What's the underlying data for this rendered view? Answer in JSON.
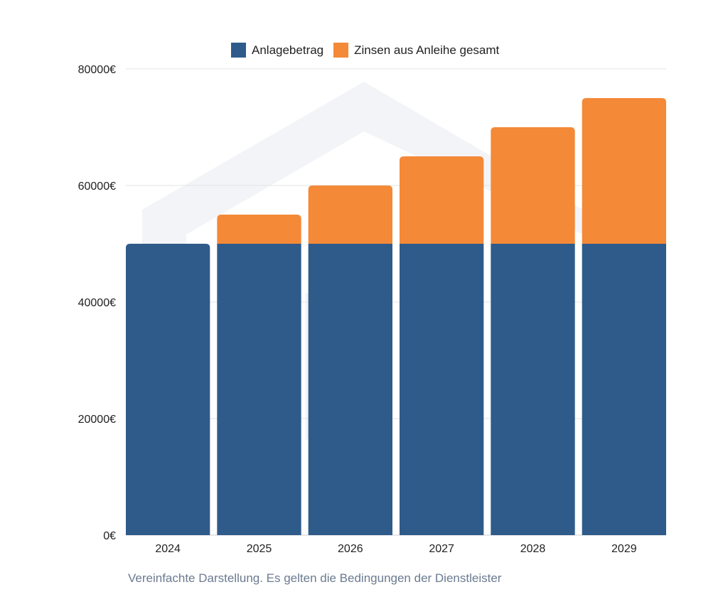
{
  "chart_data": {
    "type": "bar",
    "stacked": true,
    "title": "",
    "xlabel": "",
    "ylabel": "",
    "categories": [
      "2024",
      "2025",
      "2026",
      "2027",
      "2028",
      "2029"
    ],
    "series": [
      {
        "name": "Anlagebetrag",
        "color": "#2f5b8b",
        "values": [
          50000,
          50000,
          50000,
          50000,
          50000,
          50000
        ]
      },
      {
        "name": "Zinsen aus Anleihe gesamt",
        "color": "#f48937",
        "values": [
          0,
          5000,
          10000,
          15000,
          20000,
          25000
        ]
      }
    ],
    "ylim": [
      0,
      80000
    ],
    "yticks": [
      0,
      20000,
      40000,
      60000,
      80000
    ],
    "ytick_labels": [
      "0€",
      "20000€",
      "40000€",
      "60000€",
      "80000€"
    ],
    "grid": true,
    "legend_position": "top-center"
  },
  "footer": "Vereinfachte Darstellung. Es gelten die Bedingungen der Dienstleister"
}
